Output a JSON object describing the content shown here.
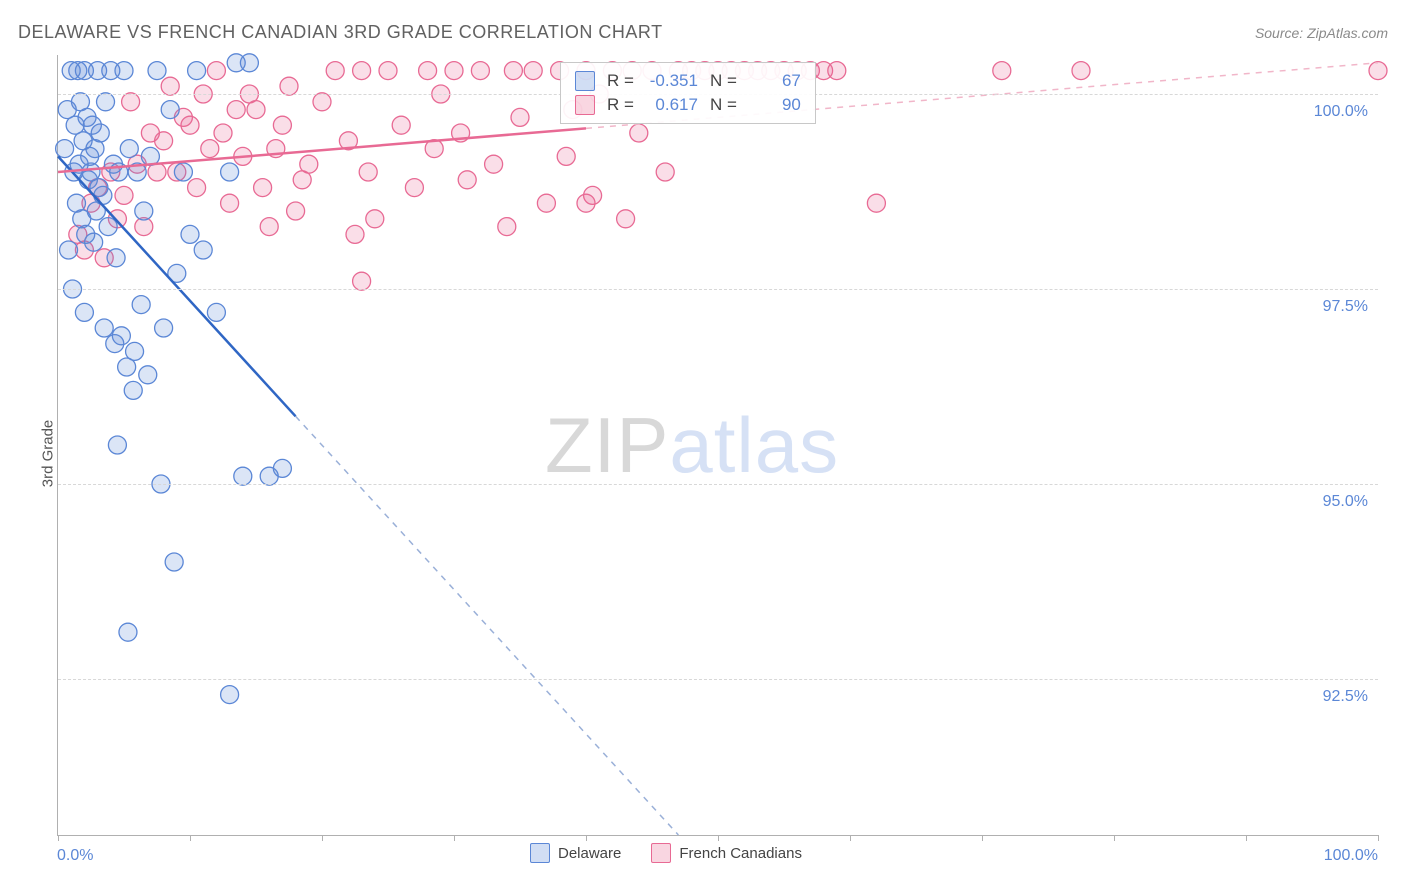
{
  "header": {
    "title": "DELAWARE VS FRENCH CANADIAN 3RD GRADE CORRELATION CHART",
    "source": "Source: ZipAtlas.com"
  },
  "watermark": {
    "zip": "ZIP",
    "atlas": "atlas"
  },
  "chart": {
    "type": "scatter",
    "yaxis_title": "3rd Grade",
    "xlim": [
      0,
      100
    ],
    "ylim": [
      90.5,
      100.5
    ],
    "x_ticks": [
      0,
      10,
      20,
      30,
      40,
      50,
      60,
      70,
      80,
      90,
      100
    ],
    "y_ticks": [
      92.5,
      95.0,
      97.5,
      100.0
    ],
    "y_tick_labels": [
      "92.5%",
      "95.0%",
      "97.5%",
      "100.0%"
    ],
    "x_label_min": "0.0%",
    "x_label_max": "100.0%",
    "grid_color": "#d8d8d8",
    "axis_color": "#b0b0b0",
    "background_color": "#ffffff",
    "marker_radius": 9,
    "colors": {
      "blue": "#5b87d6",
      "pink": "#e86a94",
      "value": "#5b87d6"
    },
    "series": [
      {
        "name": "Delaware",
        "color": "blue",
        "R_label": "R =",
        "R": "-0.351",
        "N_label": "N =",
        "N": "67",
        "trend": {
          "x1": 0,
          "y1": 99.2,
          "x2": 47,
          "y2": 90.5,
          "solid_until_x": 18,
          "solid_color": "#2f66c4",
          "dash_color": "#9ab0d8"
        },
        "points": [
          [
            0.5,
            99.3
          ],
          [
            0.7,
            99.8
          ],
          [
            0.8,
            98.0
          ],
          [
            1.0,
            100.3
          ],
          [
            1.2,
            99.0
          ],
          [
            1.3,
            99.6
          ],
          [
            1.4,
            98.6
          ],
          [
            1.5,
            100.3
          ],
          [
            1.6,
            99.1
          ],
          [
            1.7,
            99.9
          ],
          [
            1.8,
            98.4
          ],
          [
            1.9,
            99.4
          ],
          [
            2.0,
            100.3
          ],
          [
            2.1,
            98.2
          ],
          [
            2.2,
            99.7
          ],
          [
            2.3,
            98.9
          ],
          [
            2.4,
            99.2
          ],
          [
            2.5,
            99.0
          ],
          [
            2.6,
            99.6
          ],
          [
            2.7,
            98.1
          ],
          [
            2.8,
            99.3
          ],
          [
            2.9,
            98.5
          ],
          [
            3.0,
            100.3
          ],
          [
            3.1,
            98.8
          ],
          [
            3.2,
            99.5
          ],
          [
            3.4,
            98.7
          ],
          [
            3.6,
            99.9
          ],
          [
            3.8,
            98.3
          ],
          [
            4.0,
            100.3
          ],
          [
            4.2,
            99.1
          ],
          [
            4.4,
            97.9
          ],
          [
            4.6,
            99.0
          ],
          [
            4.8,
            96.9
          ],
          [
            5.0,
            100.3
          ],
          [
            5.2,
            96.5
          ],
          [
            5.4,
            99.3
          ],
          [
            6.0,
            99.0
          ],
          [
            6.5,
            98.5
          ],
          [
            7.0,
            99.2
          ],
          [
            7.5,
            100.3
          ],
          [
            8.0,
            97.0
          ],
          [
            8.5,
            99.8
          ],
          [
            9.0,
            97.7
          ],
          [
            9.5,
            99.0
          ],
          [
            10.0,
            98.2
          ],
          [
            10.5,
            100.3
          ],
          [
            11.0,
            98.0
          ],
          [
            12.0,
            97.2
          ],
          [
            13.0,
            99.0
          ],
          [
            13.5,
            100.4
          ],
          [
            14.0,
            95.1
          ],
          [
            14.5,
            100.4
          ],
          [
            16.0,
            95.1
          ],
          [
            17.0,
            95.2
          ],
          [
            4.5,
            95.5
          ],
          [
            5.3,
            93.1
          ],
          [
            5.7,
            96.2
          ],
          [
            6.3,
            97.3
          ],
          [
            13.0,
            92.3
          ],
          [
            3.5,
            97.0
          ],
          [
            4.3,
            96.8
          ],
          [
            5.8,
            96.7
          ],
          [
            6.8,
            96.4
          ],
          [
            7.8,
            95.0
          ],
          [
            8.8,
            94.0
          ],
          [
            1.1,
            97.5
          ],
          [
            2.0,
            97.2
          ]
        ]
      },
      {
        "name": "French Canadians",
        "color": "pink",
        "R_label": "R =",
        "R": "0.617",
        "N_label": "N =",
        "N": "90",
        "trend": {
          "x1": 0,
          "y1": 99.0,
          "x2": 100,
          "y2": 100.4,
          "solid_until_x": 40,
          "solid_color": "#e86a94",
          "dash_color": "#f1b6c9"
        },
        "points": [
          [
            2.0,
            98.0
          ],
          [
            3.0,
            98.8
          ],
          [
            4.0,
            99.0
          ],
          [
            5.0,
            98.7
          ],
          [
            6.0,
            99.1
          ],
          [
            7.0,
            99.5
          ],
          [
            8.0,
            99.4
          ],
          [
            9.0,
            99.0
          ],
          [
            10.0,
            99.6
          ],
          [
            10.5,
            98.8
          ],
          [
            11.0,
            100.0
          ],
          [
            11.5,
            99.3
          ],
          [
            12.0,
            100.3
          ],
          [
            12.5,
            99.5
          ],
          [
            13.0,
            98.6
          ],
          [
            14.0,
            99.2
          ],
          [
            15.0,
            99.8
          ],
          [
            16.0,
            98.3
          ],
          [
            17.0,
            99.6
          ],
          [
            18.0,
            98.5
          ],
          [
            19.0,
            99.1
          ],
          [
            20.0,
            99.9
          ],
          [
            21.0,
            100.3
          ],
          [
            22.0,
            99.4
          ],
          [
            22.5,
            98.2
          ],
          [
            23.0,
            100.3
          ],
          [
            23.5,
            99.0
          ],
          [
            24.0,
            98.4
          ],
          [
            25.0,
            100.3
          ],
          [
            26.0,
            99.6
          ],
          [
            27.0,
            98.8
          ],
          [
            28.0,
            100.3
          ],
          [
            28.5,
            99.3
          ],
          [
            29.0,
            100.0
          ],
          [
            30.0,
            100.3
          ],
          [
            30.5,
            99.5
          ],
          [
            31.0,
            98.9
          ],
          [
            32.0,
            100.3
          ],
          [
            33.0,
            99.1
          ],
          [
            34.0,
            98.3
          ],
          [
            34.5,
            100.3
          ],
          [
            35.0,
            99.7
          ],
          [
            36.0,
            100.3
          ],
          [
            37.0,
            98.6
          ],
          [
            38.0,
            100.3
          ],
          [
            38.5,
            99.2
          ],
          [
            39.0,
            99.8
          ],
          [
            40.0,
            100.3
          ],
          [
            40.5,
            98.7
          ],
          [
            41.0,
            100.0
          ],
          [
            42.0,
            100.3
          ],
          [
            43.0,
            98.4
          ],
          [
            43.5,
            100.3
          ],
          [
            44.0,
            99.5
          ],
          [
            45.0,
            100.3
          ],
          [
            46.0,
            99.0
          ],
          [
            47.0,
            100.3
          ],
          [
            48.0,
            100.3
          ],
          [
            49.0,
            100.3
          ],
          [
            50.0,
            100.3
          ],
          [
            51.0,
            100.3
          ],
          [
            52.0,
            100.3
          ],
          [
            53.0,
            100.3
          ],
          [
            54.0,
            100.3
          ],
          [
            55.0,
            100.3
          ],
          [
            56.0,
            100.3
          ],
          [
            57.0,
            100.3
          ],
          [
            58.0,
            100.3
          ],
          [
            59.0,
            100.3
          ],
          [
            23.0,
            97.6
          ],
          [
            40.0,
            98.6
          ],
          [
            62.0,
            98.6
          ],
          [
            71.5,
            100.3
          ],
          [
            77.5,
            100.3
          ],
          [
            100.0,
            100.3
          ],
          [
            5.5,
            99.9
          ],
          [
            6.5,
            98.3
          ],
          [
            7.5,
            99.0
          ],
          [
            8.5,
            100.1
          ],
          [
            9.5,
            99.7
          ],
          [
            3.5,
            97.9
          ],
          [
            4.5,
            98.4
          ],
          [
            1.5,
            98.2
          ],
          [
            2.5,
            98.6
          ],
          [
            13.5,
            99.8
          ],
          [
            14.5,
            100.0
          ],
          [
            15.5,
            98.8
          ],
          [
            16.5,
            99.3
          ],
          [
            17.5,
            100.1
          ],
          [
            18.5,
            98.9
          ]
        ]
      }
    ]
  },
  "legend": {
    "delaware": "Delaware",
    "french": "French Canadians"
  }
}
